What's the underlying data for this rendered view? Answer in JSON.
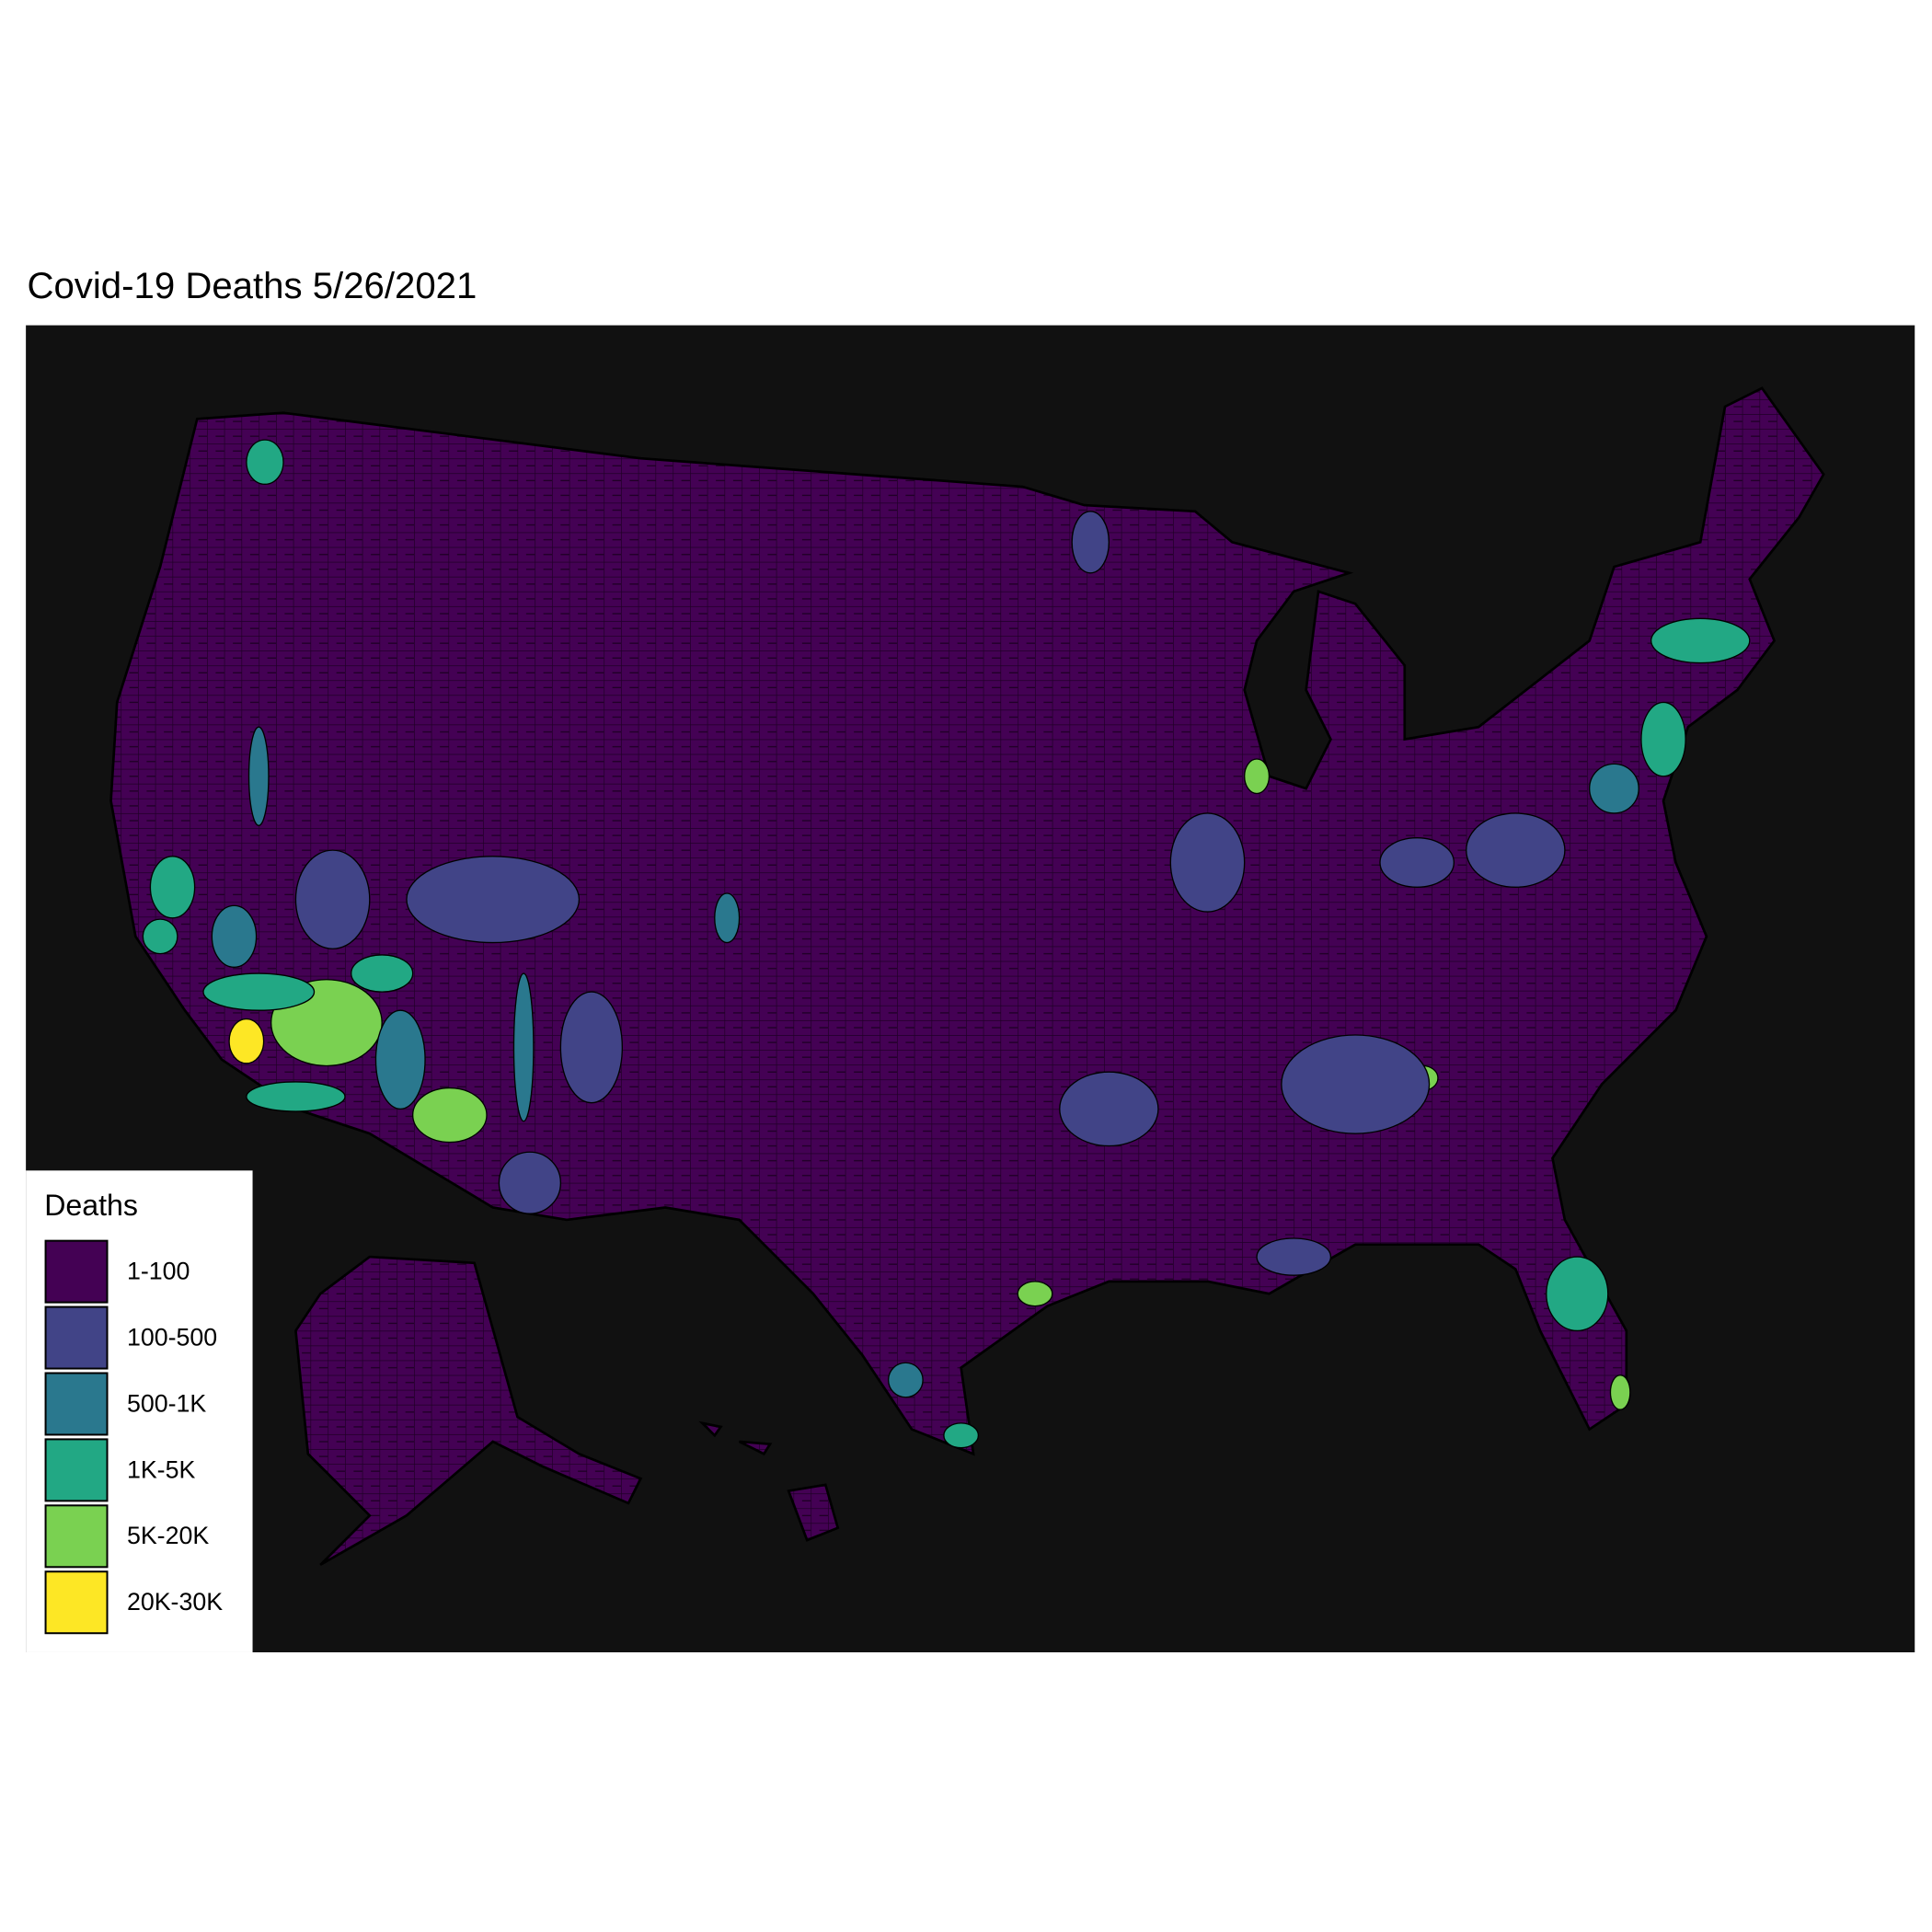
{
  "title": "Covid-19 Deaths 5/26/2021",
  "legend": {
    "title": "Deaths",
    "items": [
      {
        "label": "1-100",
        "color": "#440154"
      },
      {
        "label": "100-500",
        "color": "#414487"
      },
      {
        "label": "500-1K",
        "color": "#2a788e"
      },
      {
        "label": "1K-5K",
        "color": "#22a884"
      },
      {
        "label": "5K-20K",
        "color": "#7ad151"
      },
      {
        "label": "20K-30K",
        "color": "#fde725"
      }
    ]
  }
}
